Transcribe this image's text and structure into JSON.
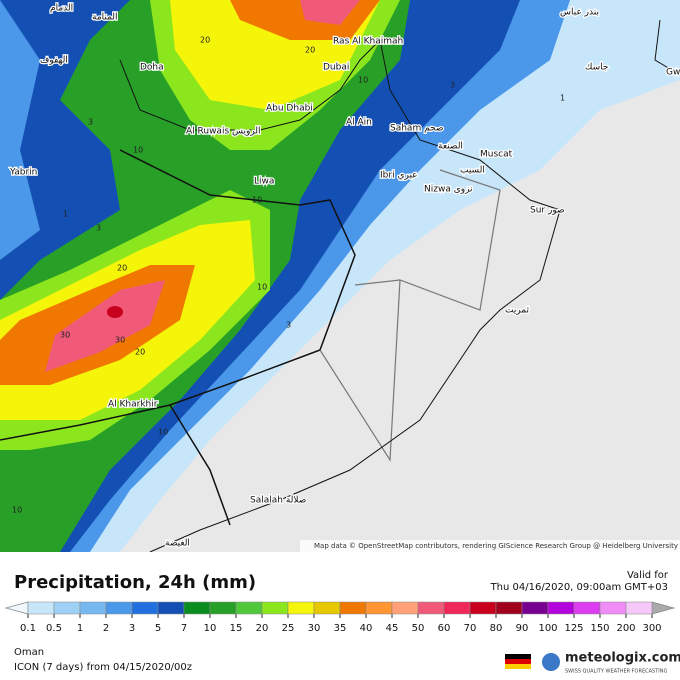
{
  "map": {
    "places": [
      "Doha",
      "Dubai",
      "Abu Dhabi",
      "Ras Al Khaimah",
      "Al Ain",
      "Saham صحم",
      "Muscat",
      "Ibri عبري",
      "Nizwa نزوى",
      "Liwa",
      "Al Ruwais الرويس",
      "Al Kharkhir",
      "Salalah صلالة",
      "Yabrin",
      "Sur صور",
      "الهفوف",
      "الدمام",
      "المنامة",
      "جاسك",
      "بندر عباس",
      "السيب",
      "الصنعة",
      "ثمريت",
      "الغيضة",
      "Gw"
    ],
    "contour_labels": [
      "20",
      "20",
      "10",
      "10",
      "3",
      "1",
      "3",
      "20",
      "30",
      "30",
      "20",
      "10",
      "10",
      "10",
      "3",
      "1",
      "3",
      "10"
    ],
    "attribution": "Map data © OpenStreetMap contributors, rendering GIScience Research Group @ Heidelberg University"
  },
  "legend": {
    "title": "Precipitation, 24h (mm)",
    "valid_label": "Valid for",
    "valid_time": "Thu 04/16/2020, 09:00am GMT+03",
    "ticks": [
      0.1,
      0.5,
      1,
      2,
      3,
      5,
      7,
      10,
      15,
      20,
      25,
      30,
      35,
      40,
      45,
      50,
      60,
      70,
      80,
      90,
      100,
      125,
      150,
      200,
      300
    ],
    "colors": [
      "#c8e6fa",
      "#9fd0f5",
      "#78b8f0",
      "#4b98eb",
      "#2070e0",
      "#1450b4",
      "#0a8c1e",
      "#28a028",
      "#50c83c",
      "#8ce61e",
      "#f5f50a",
      "#e6c800",
      "#f07800",
      "#ff9632",
      "#ffa078",
      "#f05a78",
      "#f0285a",
      "#c8001e",
      "#a0001e",
      "#780090",
      "#b400dc",
      "#dc3cf0",
      "#f08cf5",
      "#f5c8fa"
    ],
    "region": "Oman",
    "model": "ICON (7 days) from 04/15/2020/00z",
    "brand": "meteologix.com",
    "tagline": "SWISS QUALITY WEATHER FORECASTING"
  }
}
